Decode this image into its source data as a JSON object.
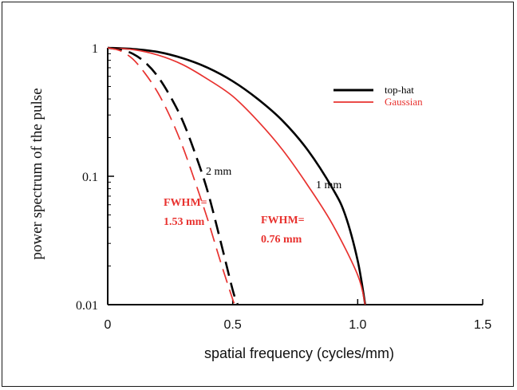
{
  "chart_data": {
    "type": "line",
    "title": "",
    "xlabel": "spatial frequency (cycles/mm)",
    "ylabel": "power spectrum of the pulse",
    "x_ticks": [
      "0",
      "0.5",
      "1.0",
      "1.5"
    ],
    "y_ticks": [
      "1",
      "0.1",
      "0.01"
    ],
    "xlim": [
      0,
      1.5
    ],
    "ylim": [
      0.01,
      1
    ],
    "y_scale": "log",
    "grid": false,
    "legend_position": "top-right",
    "legend": [
      {
        "label": "top-hat",
        "color": "#000000"
      },
      {
        "label": "Gaussian",
        "color": "#e8322f"
      }
    ],
    "series": [
      {
        "legend": "top-hat",
        "size_label": "1 mm",
        "color": "#000000",
        "dash": "solid",
        "x": [
          0,
          0.1,
          0.2,
          0.3,
          0.4,
          0.5,
          0.6,
          0.7,
          0.8,
          0.9,
          0.95,
          1.0,
          1.03
        ],
        "y": [
          1,
          0.98,
          0.93,
          0.83,
          0.7,
          0.55,
          0.4,
          0.27,
          0.16,
          0.08,
          0.05,
          0.022,
          0.01
        ]
      },
      {
        "legend": "Gaussian",
        "size_label": "FWHM= 0.76 mm",
        "color": "#e8322f",
        "dash": "solid",
        "x": [
          0,
          0.1,
          0.2,
          0.3,
          0.4,
          0.5,
          0.6,
          0.7,
          0.8,
          0.9,
          1.0,
          1.03
        ],
        "y": [
          1,
          0.97,
          0.88,
          0.74,
          0.57,
          0.42,
          0.27,
          0.16,
          0.085,
          0.042,
          0.017,
          0.01
        ]
      },
      {
        "legend": "top-hat",
        "size_label": "2 mm",
        "color": "#000000",
        "dash": "dashed",
        "x": [
          0,
          0.05,
          0.1,
          0.15,
          0.2,
          0.25,
          0.3,
          0.35,
          0.4,
          0.45,
          0.5,
          0.52
        ],
        "y": [
          1,
          0.97,
          0.9,
          0.77,
          0.6,
          0.42,
          0.27,
          0.15,
          0.076,
          0.032,
          0.013,
          0.01
        ]
      },
      {
        "legend": "Gaussian",
        "size_label": "FWHM= 1.53 mm",
        "color": "#e8322f",
        "dash": "dashed",
        "x": [
          0,
          0.05,
          0.1,
          0.15,
          0.2,
          0.25,
          0.3,
          0.35,
          0.4,
          0.45,
          0.5,
          0.51
        ],
        "y": [
          1,
          0.95,
          0.82,
          0.63,
          0.45,
          0.29,
          0.17,
          0.09,
          0.046,
          0.022,
          0.011,
          0.01
        ]
      }
    ]
  }
}
